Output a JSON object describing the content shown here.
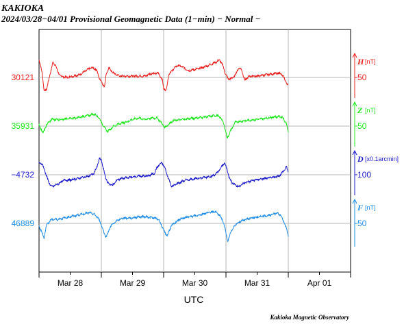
{
  "station": "KAKIOKA",
  "subtitle": "2024/03/28−04/01  Provisional Geomagnetic Data (1−min)  − Normal −",
  "credit": "Kakioka Magnetic Observatory",
  "chart_data": {
    "type": "line",
    "xlabel": "UTC",
    "x_tick_labels": [
      "Mar 28",
      "Mar 29",
      "Mar 30",
      "Mar 31",
      "Apr 01"
    ],
    "x_range_days": [
      0,
      5
    ],
    "data_end_day": 4.0,
    "grid": true,
    "series": [
      {
        "name": "H",
        "unit": "[nT]",
        "color": "#e8201e",
        "left_label": "30121",
        "right_tick": "50",
        "points": [
          [
            0,
            0.65
          ],
          [
            0.05,
            0.2
          ],
          [
            0.08,
            -0.5
          ],
          [
            0.12,
            -0.45
          ],
          [
            0.18,
            0.15
          ],
          [
            0.22,
            0.55
          ],
          [
            0.27,
            0.45
          ],
          [
            0.3,
            0.2
          ],
          [
            0.35,
            0.05
          ],
          [
            0.45,
            0.0
          ],
          [
            0.55,
            0.05
          ],
          [
            0.65,
            0.1
          ],
          [
            0.75,
            0.25
          ],
          [
            0.82,
            0.35
          ],
          [
            0.88,
            0.35
          ],
          [
            0.93,
            0.25
          ],
          [
            0.97,
            -0.05
          ],
          [
            1.0,
            -0.15
          ],
          [
            1.05,
            -0.35
          ],
          [
            1.08,
            0.15
          ],
          [
            1.12,
            0.35
          ],
          [
            1.2,
            0.15
          ],
          [
            1.3,
            0.05
          ],
          [
            1.5,
            0.05
          ],
          [
            1.7,
            0.05
          ],
          [
            1.8,
            0.15
          ],
          [
            1.92,
            0.15
          ],
          [
            1.98,
            -0.1
          ],
          [
            2.0,
            -0.4
          ],
          [
            2.04,
            -0.5
          ],
          [
            2.08,
            0.1
          ],
          [
            2.15,
            0.3
          ],
          [
            2.22,
            0.45
          ],
          [
            2.3,
            0.4
          ],
          [
            2.4,
            0.25
          ],
          [
            2.5,
            0.3
          ],
          [
            2.6,
            0.35
          ],
          [
            2.72,
            0.45
          ],
          [
            2.82,
            0.55
          ],
          [
            2.9,
            0.65
          ],
          [
            2.95,
            0.45
          ],
          [
            2.98,
            0.2
          ],
          [
            3.03,
            -0.05
          ],
          [
            3.08,
            -0.05
          ],
          [
            3.14,
            0.05
          ],
          [
            3.2,
            0.35
          ],
          [
            3.25,
            0.3
          ],
          [
            3.3,
            -0.1
          ],
          [
            3.38,
            0.05
          ],
          [
            3.5,
            0.05
          ],
          [
            3.65,
            0.1
          ],
          [
            3.8,
            0.15
          ],
          [
            3.88,
            0.15
          ],
          [
            3.93,
            0.0
          ],
          [
            3.97,
            -0.2
          ],
          [
            4.0,
            -0.3
          ]
        ],
        "y_values_note": "normalized deviation in grid units"
      },
      {
        "name": "Z",
        "unit": "[nT]",
        "color": "#1ee61e",
        "left_label": "35931",
        "right_tick": "50",
        "points": [
          [
            0,
            0.05
          ],
          [
            0.03,
            -0.1
          ],
          [
            0.07,
            -0.25
          ],
          [
            0.12,
            0.05
          ],
          [
            0.2,
            0.25
          ],
          [
            0.3,
            0.25
          ],
          [
            0.4,
            0.25
          ],
          [
            0.5,
            0.3
          ],
          [
            0.6,
            0.3
          ],
          [
            0.7,
            0.35
          ],
          [
            0.8,
            0.4
          ],
          [
            0.88,
            0.45
          ],
          [
            0.95,
            0.35
          ],
          [
            1.0,
            0.15
          ],
          [
            1.05,
            -0.05
          ],
          [
            1.1,
            -0.2
          ],
          [
            1.2,
            0.0
          ],
          [
            1.3,
            0.1
          ],
          [
            1.4,
            0.15
          ],
          [
            1.5,
            0.25
          ],
          [
            1.6,
            0.3
          ],
          [
            1.7,
            0.25
          ],
          [
            1.8,
            0.3
          ],
          [
            1.9,
            0.3
          ],
          [
            1.97,
            0.1
          ],
          [
            2.02,
            -0.05
          ],
          [
            2.07,
            0.05
          ],
          [
            2.15,
            0.2
          ],
          [
            2.3,
            0.25
          ],
          [
            2.5,
            0.3
          ],
          [
            2.7,
            0.35
          ],
          [
            2.85,
            0.4
          ],
          [
            2.92,
            0.3
          ],
          [
            2.97,
            0.05
          ],
          [
            3.02,
            -0.45
          ],
          [
            3.08,
            -0.15
          ],
          [
            3.15,
            0.15
          ],
          [
            3.3,
            0.2
          ],
          [
            3.5,
            0.25
          ],
          [
            3.65,
            0.3
          ],
          [
            3.8,
            0.35
          ],
          [
            3.9,
            0.35
          ],
          [
            3.97,
            0.1
          ],
          [
            4.0,
            -0.25
          ]
        ]
      },
      {
        "name": "D",
        "unit": "[x0.1arcmin]",
        "color": "#1818c8",
        "left_label": "−4732",
        "right_tick": "100",
        "points": [
          [
            0,
            0.45
          ],
          [
            0.05,
            0.4
          ],
          [
            0.1,
            0.1
          ],
          [
            0.15,
            -0.25
          ],
          [
            0.2,
            -0.45
          ],
          [
            0.3,
            -0.35
          ],
          [
            0.4,
            -0.2
          ],
          [
            0.5,
            -0.2
          ],
          [
            0.6,
            -0.15
          ],
          [
            0.7,
            -0.1
          ],
          [
            0.8,
            -0.05
          ],
          [
            0.88,
            0.05
          ],
          [
            0.93,
            0.3
          ],
          [
            0.97,
            0.6
          ],
          [
            1.0,
            0.55
          ],
          [
            1.05,
            0.05
          ],
          [
            1.1,
            -0.3
          ],
          [
            1.18,
            -0.4
          ],
          [
            1.25,
            -0.2
          ],
          [
            1.3,
            -0.15
          ],
          [
            1.45,
            -0.1
          ],
          [
            1.6,
            -0.05
          ],
          [
            1.75,
            -0.05
          ],
          [
            1.85,
            0.05
          ],
          [
            1.9,
            0.3
          ],
          [
            1.97,
            0.45
          ],
          [
            2.02,
            0.25
          ],
          [
            2.07,
            -0.1
          ],
          [
            2.13,
            -0.45
          ],
          [
            2.2,
            -0.35
          ],
          [
            2.35,
            -0.2
          ],
          [
            2.5,
            -0.15
          ],
          [
            2.65,
            -0.1
          ],
          [
            2.78,
            -0.05
          ],
          [
            2.85,
            0.05
          ],
          [
            2.92,
            0.25
          ],
          [
            2.97,
            0.45
          ],
          [
            3.02,
            0.2
          ],
          [
            3.05,
            -0.1
          ],
          [
            3.1,
            -0.3
          ],
          [
            3.2,
            -0.45
          ],
          [
            3.3,
            -0.3
          ],
          [
            3.45,
            -0.2
          ],
          [
            3.6,
            -0.15
          ],
          [
            3.75,
            -0.1
          ],
          [
            3.85,
            -0.05
          ],
          [
            3.93,
            0.15
          ],
          [
            3.97,
            0.3
          ],
          [
            4.0,
            0.1
          ]
        ]
      },
      {
        "name": "F",
        "unit": "[nT]",
        "color": "#1e8ce6",
        "left_label": "46889",
        "right_tick": "50",
        "points": [
          [
            0,
            -0.1
          ],
          [
            0.04,
            -0.3
          ],
          [
            0.08,
            -0.55
          ],
          [
            0.12,
            -0.05
          ],
          [
            0.2,
            0.15
          ],
          [
            0.3,
            0.15
          ],
          [
            0.4,
            0.2
          ],
          [
            0.5,
            0.25
          ],
          [
            0.6,
            0.3
          ],
          [
            0.7,
            0.35
          ],
          [
            0.8,
            0.4
          ],
          [
            0.88,
            0.35
          ],
          [
            0.95,
            0.2
          ],
          [
            1.0,
            -0.05
          ],
          [
            1.05,
            -0.4
          ],
          [
            1.08,
            -0.5
          ],
          [
            1.15,
            -0.1
          ],
          [
            1.25,
            0.1
          ],
          [
            1.35,
            0.2
          ],
          [
            1.5,
            0.2
          ],
          [
            1.6,
            0.25
          ],
          [
            1.72,
            0.25
          ],
          [
            1.85,
            0.2
          ],
          [
            1.92,
            0.15
          ],
          [
            1.97,
            -0.1
          ],
          [
            2.02,
            -0.35
          ],
          [
            2.06,
            -0.45
          ],
          [
            2.12,
            -0.1
          ],
          [
            2.25,
            0.15
          ],
          [
            2.4,
            0.25
          ],
          [
            2.55,
            0.3
          ],
          [
            2.7,
            0.4
          ],
          [
            2.82,
            0.45
          ],
          [
            2.9,
            0.3
          ],
          [
            2.95,
            0.1
          ],
          [
            3.0,
            -0.35
          ],
          [
            3.03,
            -0.7
          ],
          [
            3.08,
            -0.3
          ],
          [
            3.15,
            -0.05
          ],
          [
            3.25,
            0.1
          ],
          [
            3.4,
            0.2
          ],
          [
            3.55,
            0.25
          ],
          [
            3.7,
            0.3
          ],
          [
            3.82,
            0.4
          ],
          [
            3.88,
            0.3
          ],
          [
            3.94,
            0.0
          ],
          [
            3.97,
            -0.2
          ],
          [
            4.0,
            -0.45
          ]
        ]
      }
    ]
  }
}
